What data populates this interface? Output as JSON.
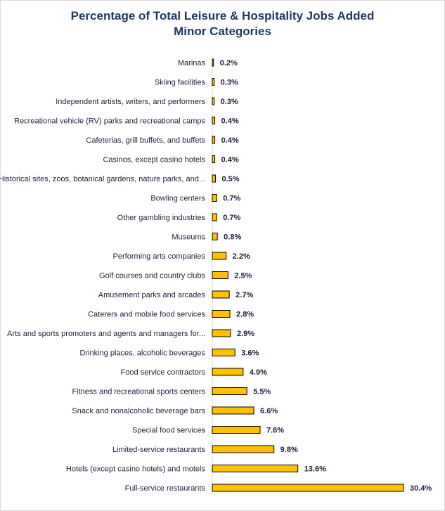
{
  "chart_data": {
    "type": "bar",
    "orientation": "horizontal",
    "title": "Percentage of Total Leisure & Hospitality Jobs Added",
    "subtitle": "Minor Categories",
    "categories": [
      "Marinas",
      "Skiing facilities",
      "Independent artists, writers, and performers",
      "Recreational vehicle (RV) parks and recreational camps",
      "Cafeterias, grill buffets, and buffets",
      "Casinos, except casino hotels",
      "Historical sites, zoos, botanical gardens, nature parks, and...",
      "Bowling centers",
      "Other gambling industries",
      "Museums",
      "Performing arts companies",
      "Golf courses and country clubs",
      "Amusement parks and arcades",
      "Caterers and mobile food services",
      "Arts and sports promoters and agents and managers for...",
      "Drinking places, alcoholic beverages",
      "Food service contractors",
      "Fitness and recreational sports centers",
      "Snack and nonalcoholic beverage bars",
      "Special food services",
      "Limited-service restaurants",
      "Hotels (except casino hotels) and motels",
      "Full-service restaurants"
    ],
    "values": [
      0.2,
      0.3,
      0.3,
      0.4,
      0.4,
      0.4,
      0.5,
      0.7,
      0.7,
      0.8,
      2.2,
      2.5,
      2.7,
      2.8,
      2.9,
      3.6,
      4.9,
      5.5,
      6.6,
      7.6,
      9.8,
      13.6,
      30.4
    ],
    "value_labels": [
      "0.2%",
      "0.3%",
      "0.3%",
      "0.4%",
      "0.4%",
      "0.4%",
      "0.5%",
      "0.7%",
      "0.7%",
      "0.8%",
      "2.2%",
      "2.5%",
      "2.7%",
      "2.8%",
      "2.9%",
      "3.6%",
      "4.9%",
      "5.5%",
      "6.6%",
      "7.6%",
      "9.8%",
      "13.6%",
      "30.4%"
    ],
    "xlabel": "",
    "ylabel": "",
    "xlim": [
      0,
      30.4
    ],
    "grid": false,
    "legend": "none",
    "colors": {
      "bar": "#ffc000",
      "bar_border": "#000000",
      "title": "#1f3864",
      "text": "#1f1f3a"
    }
  }
}
